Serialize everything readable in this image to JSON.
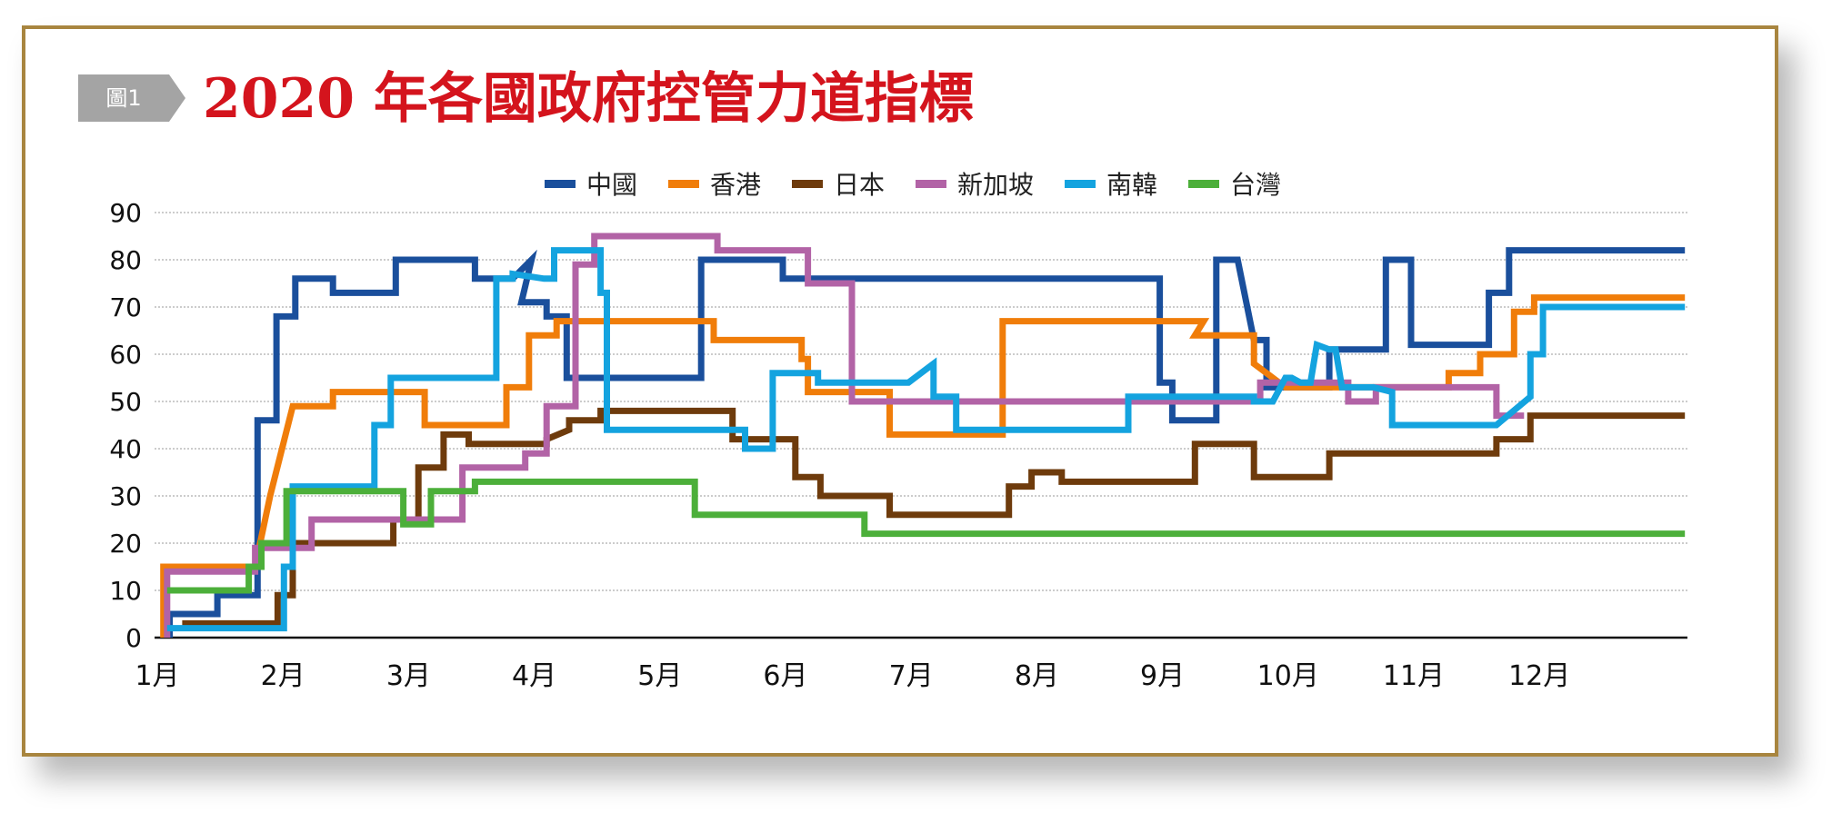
{
  "badge": {
    "text": "圖1",
    "color": "#a4a4a4"
  },
  "title": "2020 年各國政府控管力道指標",
  "chart_data": {
    "type": "line",
    "title": "2020 年各國政府控管力道指標",
    "xlabel": "",
    "ylabel": "",
    "ylim": [
      0,
      90
    ],
    "yticks": [
      0,
      10,
      20,
      30,
      40,
      50,
      60,
      70,
      80,
      90
    ],
    "xlim": [
      1,
      13.2
    ],
    "xticks": [
      {
        "x": 1,
        "label": "1月"
      },
      {
        "x": 2,
        "label": "2月"
      },
      {
        "x": 3,
        "label": "3月"
      },
      {
        "x": 4,
        "label": "4月"
      },
      {
        "x": 5,
        "label": "5月"
      },
      {
        "x": 6,
        "label": "6月"
      },
      {
        "x": 7,
        "label": "7月"
      },
      {
        "x": 8,
        "label": "8月"
      },
      {
        "x": 9,
        "label": "9月"
      },
      {
        "x": 10,
        "label": "10月"
      },
      {
        "x": 11,
        "label": "11月"
      },
      {
        "x": 12,
        "label": "12月"
      }
    ],
    "grid": true,
    "legend_position": "top-center",
    "x_units": "month (1 = start of January)",
    "series": [
      {
        "name": "中國",
        "color": "#1a4f9c",
        "points": [
          [
            1.12,
            0
          ],
          [
            1.12,
            5
          ],
          [
            1.5,
            5
          ],
          [
            1.5,
            9
          ],
          [
            1.82,
            9
          ],
          [
            1.82,
            46
          ],
          [
            1.97,
            46
          ],
          [
            1.97,
            68
          ],
          [
            2.12,
            68
          ],
          [
            2.12,
            76
          ],
          [
            2.42,
            76
          ],
          [
            2.42,
            73
          ],
          [
            2.92,
            73
          ],
          [
            2.92,
            80
          ],
          [
            3.55,
            80
          ],
          [
            3.55,
            76
          ],
          [
            3.85,
            76
          ],
          [
            4.0,
            80
          ],
          [
            3.92,
            71
          ],
          [
            4.12,
            71
          ],
          [
            4.12,
            68
          ],
          [
            4.28,
            68
          ],
          [
            4.28,
            55
          ],
          [
            5.35,
            55
          ],
          [
            5.35,
            80
          ],
          [
            6.0,
            80
          ],
          [
            6.0,
            76
          ],
          [
            9.0,
            76
          ],
          [
            9.0,
            54
          ],
          [
            9.1,
            54
          ],
          [
            9.1,
            46
          ],
          [
            9.45,
            46
          ],
          [
            9.45,
            80
          ],
          [
            9.62,
            80
          ],
          [
            9.75,
            63
          ],
          [
            9.85,
            63
          ],
          [
            9.85,
            53
          ],
          [
            10.35,
            53
          ],
          [
            10.35,
            61
          ],
          [
            10.8,
            61
          ],
          [
            10.8,
            80
          ],
          [
            11.0,
            80
          ],
          [
            11.0,
            62
          ],
          [
            11.62,
            62
          ],
          [
            11.62,
            73
          ],
          [
            11.78,
            73
          ],
          [
            11.78,
            82
          ],
          [
            13.18,
            82
          ]
        ]
      },
      {
        "name": "香港",
        "color": "#f07d0a",
        "points": [
          [
            1.07,
            0
          ],
          [
            1.07,
            15
          ],
          [
            1.8,
            15
          ],
          [
            1.92,
            30
          ],
          [
            2.1,
            49
          ],
          [
            2.42,
            49
          ],
          [
            2.42,
            52
          ],
          [
            3.15,
            52
          ],
          [
            3.15,
            45
          ],
          [
            3.8,
            45
          ],
          [
            3.8,
            53
          ],
          [
            3.98,
            53
          ],
          [
            3.98,
            64
          ],
          [
            4.2,
            64
          ],
          [
            4.2,
            67
          ],
          [
            5.45,
            67
          ],
          [
            5.45,
            63
          ],
          [
            6.15,
            63
          ],
          [
            6.15,
            59
          ],
          [
            6.2,
            59
          ],
          [
            6.2,
            52
          ],
          [
            6.85,
            52
          ],
          [
            6.85,
            43
          ],
          [
            7.75,
            43
          ],
          [
            7.75,
            67
          ],
          [
            9.35,
            67
          ],
          [
            9.28,
            64
          ],
          [
            9.75,
            64
          ],
          [
            9.75,
            58
          ],
          [
            10.0,
            53
          ],
          [
            11.3,
            53
          ],
          [
            11.3,
            56
          ],
          [
            11.55,
            56
          ],
          [
            11.55,
            60
          ],
          [
            11.82,
            60
          ],
          [
            11.82,
            69
          ],
          [
            11.98,
            69
          ],
          [
            11.98,
            72
          ],
          [
            13.18,
            72
          ]
        ]
      },
      {
        "name": "日本",
        "color": "#6e3b0c",
        "points": [
          [
            1.22,
            3
          ],
          [
            1.98,
            3
          ],
          [
            1.98,
            9
          ],
          [
            2.1,
            9
          ],
          [
            2.1,
            20
          ],
          [
            2.9,
            20
          ],
          [
            2.9,
            25
          ],
          [
            3.1,
            25
          ],
          [
            3.1,
            36
          ],
          [
            3.3,
            36
          ],
          [
            3.3,
            43
          ],
          [
            3.5,
            43
          ],
          [
            3.5,
            41
          ],
          [
            4.12,
            41
          ],
          [
            4.12,
            42
          ],
          [
            4.3,
            44
          ],
          [
            4.3,
            46
          ],
          [
            4.55,
            46
          ],
          [
            4.55,
            48
          ],
          [
            5.6,
            48
          ],
          [
            5.6,
            42
          ],
          [
            6.1,
            42
          ],
          [
            6.1,
            34
          ],
          [
            6.3,
            34
          ],
          [
            6.3,
            30
          ],
          [
            6.85,
            30
          ],
          [
            6.85,
            26
          ],
          [
            7.8,
            26
          ],
          [
            7.8,
            32
          ],
          [
            7.98,
            32
          ],
          [
            7.98,
            35
          ],
          [
            8.22,
            35
          ],
          [
            8.22,
            33
          ],
          [
            9.28,
            33
          ],
          [
            9.28,
            41
          ],
          [
            9.75,
            41
          ],
          [
            9.75,
            34
          ],
          [
            10.35,
            34
          ],
          [
            10.35,
            39
          ],
          [
            11.68,
            39
          ],
          [
            11.68,
            42
          ],
          [
            11.95,
            42
          ],
          [
            11.95,
            47
          ],
          [
            13.18,
            47
          ]
        ]
      },
      {
        "name": "新加坡",
        "color": "#b263a6",
        "points": [
          [
            1.1,
            0
          ],
          [
            1.1,
            14
          ],
          [
            1.8,
            14
          ],
          [
            1.8,
            19
          ],
          [
            2.25,
            19
          ],
          [
            2.25,
            25
          ],
          [
            3.1,
            25
          ],
          [
            3.1,
            25
          ],
          [
            3.45,
            25
          ],
          [
            3.45,
            36
          ],
          [
            3.95,
            36
          ],
          [
            3.95,
            39
          ],
          [
            4.12,
            39
          ],
          [
            4.12,
            49
          ],
          [
            4.35,
            49
          ],
          [
            4.35,
            79
          ],
          [
            4.5,
            79
          ],
          [
            4.5,
            85
          ],
          [
            5.48,
            85
          ],
          [
            5.48,
            82
          ],
          [
            6.2,
            82
          ],
          [
            6.2,
            75
          ],
          [
            6.55,
            75
          ],
          [
            6.55,
            50
          ],
          [
            9.8,
            50
          ],
          [
            9.8,
            54
          ],
          [
            10.5,
            54
          ],
          [
            10.5,
            50
          ],
          [
            10.72,
            50
          ],
          [
            10.72,
            53
          ],
          [
            11.68,
            53
          ],
          [
            11.68,
            47
          ],
          [
            11.9,
            47
          ]
        ]
      },
      {
        "name": "南韓",
        "color": "#14a3df",
        "points": [
          [
            1.1,
            2
          ],
          [
            2.03,
            2
          ],
          [
            2.03,
            15
          ],
          [
            2.1,
            15
          ],
          [
            2.1,
            32
          ],
          [
            2.75,
            32
          ],
          [
            2.75,
            45
          ],
          [
            2.88,
            45
          ],
          [
            2.88,
            55
          ],
          [
            3.72,
            55
          ],
          [
            3.72,
            76
          ],
          [
            3.85,
            76
          ],
          [
            3.85,
            77
          ],
          [
            4.1,
            76
          ],
          [
            4.18,
            76
          ],
          [
            4.18,
            82
          ],
          [
            4.55,
            82
          ],
          [
            4.55,
            73
          ],
          [
            4.6,
            73
          ],
          [
            4.6,
            44
          ],
          [
            5.7,
            44
          ],
          [
            5.7,
            40
          ],
          [
            5.92,
            40
          ],
          [
            5.92,
            56
          ],
          [
            6.28,
            56
          ],
          [
            6.28,
            54
          ],
          [
            7.0,
            54
          ],
          [
            7.2,
            58
          ],
          [
            7.2,
            51
          ],
          [
            7.38,
            51
          ],
          [
            7.38,
            44
          ],
          [
            8.75,
            44
          ],
          [
            8.75,
            51
          ],
          [
            9.75,
            51
          ],
          [
            9.75,
            50
          ],
          [
            9.9,
            50
          ],
          [
            10.0,
            55
          ],
          [
            10.05,
            55
          ],
          [
            10.12,
            54
          ],
          [
            10.2,
            54
          ],
          [
            10.25,
            62
          ],
          [
            10.35,
            61
          ],
          [
            10.4,
            61
          ],
          [
            10.45,
            53
          ],
          [
            10.7,
            53
          ],
          [
            10.85,
            52
          ],
          [
            10.85,
            45
          ],
          [
            11.68,
            45
          ],
          [
            11.95,
            51
          ],
          [
            11.95,
            60
          ],
          [
            12.05,
            60
          ],
          [
            12.05,
            70
          ],
          [
            13.18,
            70
          ]
        ]
      },
      {
        "name": "台灣",
        "color": "#4caf3a",
        "points": [
          [
            1.1,
            10
          ],
          [
            1.75,
            10
          ],
          [
            1.75,
            15
          ],
          [
            1.85,
            15
          ],
          [
            1.85,
            20
          ],
          [
            2.05,
            20
          ],
          [
            2.05,
            31
          ],
          [
            2.98,
            31
          ],
          [
            2.98,
            24
          ],
          [
            3.2,
            24
          ],
          [
            3.2,
            31
          ],
          [
            3.55,
            31
          ],
          [
            3.55,
            33
          ],
          [
            5.3,
            33
          ],
          [
            5.3,
            26
          ],
          [
            6.65,
            26
          ],
          [
            6.65,
            22
          ],
          [
            13.18,
            22
          ]
        ]
      }
    ]
  }
}
